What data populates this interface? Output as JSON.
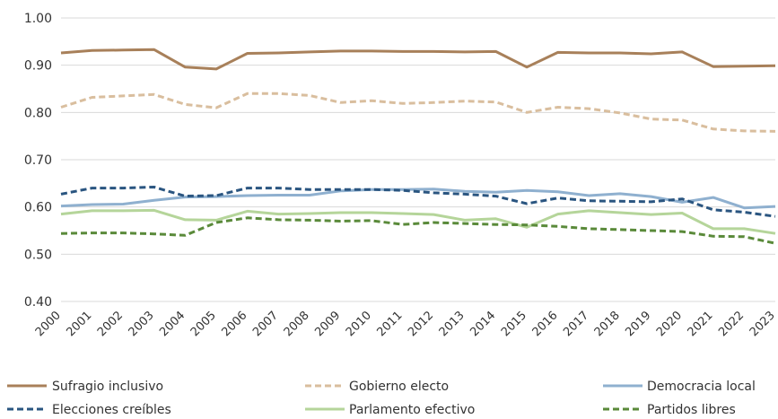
{
  "chart_data": {
    "type": "line",
    "title": "",
    "xlabel": "",
    "ylabel": "",
    "x": [
      "2000",
      "2001",
      "2002",
      "2003",
      "2004",
      "2005",
      "2006",
      "2007",
      "2008",
      "2009",
      "2010",
      "2011",
      "2012",
      "2013",
      "2014",
      "2015",
      "2016",
      "2017",
      "2018",
      "2019",
      "2020",
      "2021",
      "2022",
      "2023"
    ],
    "ylim": [
      0.4,
      1.0
    ],
    "yticks": [
      "0.40",
      "0.50",
      "0.60",
      "0.70",
      "0.80",
      "0.90",
      "1.00"
    ],
    "grid": "horizontal",
    "legend_position": "bottom",
    "series": [
      {
        "name": "Sufragio inclusivo",
        "color": "#A8805A",
        "dash": "solid",
        "values": [
          0.926,
          0.931,
          0.932,
          0.933,
          0.896,
          0.892,
          0.925,
          0.926,
          0.928,
          0.93,
          0.93,
          0.929,
          0.929,
          0.928,
          0.929,
          0.896,
          0.927,
          0.926,
          0.926,
          0.924,
          0.928,
          0.897,
          0.898,
          0.899
        ]
      },
      {
        "name": "Gobierno electo",
        "color": "#D9BE9E",
        "dash": "dashed",
        "values": [
          0.811,
          0.832,
          0.835,
          0.838,
          0.817,
          0.81,
          0.84,
          0.84,
          0.836,
          0.821,
          0.825,
          0.819,
          0.821,
          0.824,
          0.822,
          0.8,
          0.811,
          0.808,
          0.799,
          0.786,
          0.784,
          0.765,
          0.761,
          0.76
        ]
      },
      {
        "name": "Democracia local",
        "color": "#8FB0CF",
        "dash": "solid",
        "values": [
          0.602,
          0.605,
          0.606,
          0.614,
          0.621,
          0.622,
          0.624,
          0.625,
          0.625,
          0.634,
          0.637,
          0.637,
          0.638,
          0.633,
          0.631,
          0.635,
          0.632,
          0.624,
          0.628,
          0.622,
          0.61,
          0.62,
          0.598,
          0.601
        ]
      },
      {
        "name": "Elecciones creíbles",
        "color": "#2A5580",
        "dash": "dashed",
        "values": [
          0.627,
          0.64,
          0.64,
          0.642,
          0.623,
          0.624,
          0.64,
          0.64,
          0.637,
          0.637,
          0.637,
          0.635,
          0.63,
          0.627,
          0.623,
          0.607,
          0.619,
          0.613,
          0.612,
          0.611,
          0.617,
          0.594,
          0.589,
          0.58
        ]
      },
      {
        "name": "Parlamento efectivo",
        "color": "#B5D59A",
        "dash": "solid",
        "values": [
          0.585,
          0.592,
          0.592,
          0.593,
          0.573,
          0.572,
          0.591,
          0.585,
          0.586,
          0.588,
          0.588,
          0.586,
          0.584,
          0.572,
          0.575,
          0.557,
          0.585,
          0.592,
          0.588,
          0.584,
          0.587,
          0.554,
          0.554,
          0.544
        ]
      },
      {
        "name": "Partidos libres",
        "color": "#5A8A3A",
        "dash": "dashed",
        "values": [
          0.544,
          0.545,
          0.545,
          0.543,
          0.54,
          0.567,
          0.577,
          0.573,
          0.572,
          0.57,
          0.571,
          0.563,
          0.567,
          0.565,
          0.563,
          0.562,
          0.559,
          0.554,
          0.552,
          0.55,
          0.548,
          0.538,
          0.537,
          0.523
        ]
      }
    ]
  }
}
